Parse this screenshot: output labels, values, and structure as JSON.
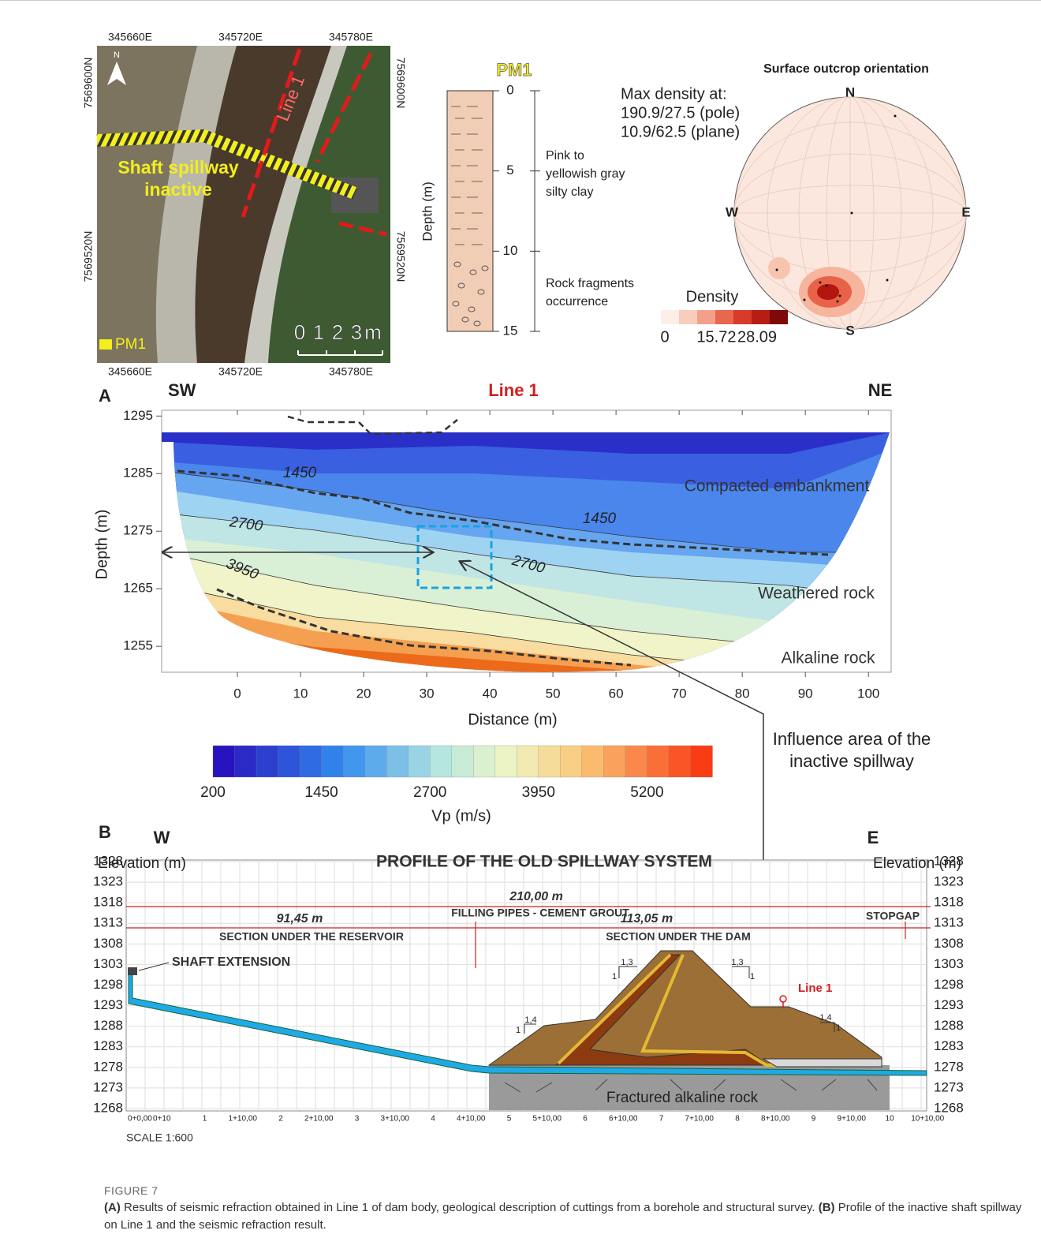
{
  "map": {
    "top_labels": [
      "345660E",
      "345720E",
      "345780E"
    ],
    "bottom_labels": [
      "345660E",
      "345720E",
      "345780E"
    ],
    "left_labels": [
      "7569600N",
      "7569520N"
    ],
    "right_labels": [
      "7569600N",
      "7569520N"
    ],
    "north": "N",
    "line_label": "Line 1",
    "spillway_label": [
      "Shaft spillway",
      "inactive"
    ],
    "scale_ticks": [
      0,
      1,
      2,
      3
    ],
    "scale_unit": "m",
    "borehole_label": "PM1"
  },
  "borehole": {
    "title": "PM1",
    "axis_label": "Depth (m)",
    "ticks": [
      0,
      5,
      10,
      15
    ],
    "descriptions": [
      [
        "Pink to",
        "yellowish gray",
        "silty clay"
      ],
      [
        "Rock fragments",
        "occurrence"
      ]
    ]
  },
  "stereonet": {
    "title": "Surface outcrop orientation",
    "max_density": [
      "Max density at:",
      "190.9/27.5 (pole)",
      "10.9/62.5 (plane)"
    ],
    "directions": {
      "north": "N",
      "south": "S",
      "west": "W",
      "east": "E"
    },
    "legend_title": "Density",
    "legend_ticks": [
      0,
      15.72,
      28.09
    ]
  },
  "section": {
    "panel": "A",
    "left_end": "SW",
    "right_end": "NE",
    "line_name": "Line 1",
    "y_label": "Depth (m)",
    "ylim": [
      1250.5,
      1296
    ],
    "yticks": [
      1295,
      1285,
      1275,
      1265,
      1255
    ],
    "x_label": "Distance (m)",
    "xlim": [
      -12,
      103.6
    ],
    "xticks": [
      0,
      10,
      20,
      30,
      40,
      50,
      60,
      70,
      80,
      90,
      100
    ],
    "contour_labels": [
      1450,
      1450,
      2700,
      2700,
      3950
    ],
    "layers": [
      "Compacted embankment",
      "Weathered rock",
      "Alkaline rock"
    ],
    "annotation": [
      "Influence area of the",
      "inactive spillway"
    ]
  },
  "colorbar": {
    "lim": [
      200,
      5950
    ],
    "ticks": [
      200,
      1450,
      2700,
      3950,
      5200
    ],
    "label": "Vp (m/s)"
  },
  "profile": {
    "panel": "B",
    "left_end": "W",
    "right_end": "E",
    "title": "PROFILE OF THE OLD SPILLWAY SYSTEM",
    "y_label": "Elevation (m)",
    "ylim": [
      1268,
      1328
    ],
    "yticks": [
      1328,
      1323,
      1318,
      1313,
      1308,
      1303,
      1298,
      1293,
      1288,
      1283,
      1278,
      1273,
      1268
    ],
    "total_length": "210,00 m",
    "reservoir_length": "91,45 m",
    "dam_length": "113,05 m",
    "filling": "FILLING PIPES - CEMENT GROUT",
    "reservoir_section": "SECTION UNDER THE RESERVOIR",
    "dam_section": "SECTION UNDER THE DAM",
    "stopgap": "STOPGAP",
    "shaft": "SHAFT EXTENSION",
    "line_marker": "Line 1",
    "rock": "Fractured alkaline rock",
    "slope_labels": [
      "1,3",
      "1",
      "1,3",
      "1",
      "1,4",
      "1",
      "1,4",
      "1"
    ],
    "stations": [
      "0+0,00",
      "0+10",
      "1",
      "1+10,00",
      "2",
      "2+10,00",
      "3",
      "3+10,00",
      "4",
      "4+10,00",
      "5",
      "5+10,00",
      "6",
      "6+10,00",
      "7",
      "7+10,00",
      "8",
      "8+10,00",
      "9",
      "9+10,00",
      "10",
      "10+10,00"
    ],
    "scale": "SCALE 1:600"
  },
  "caption": {
    "label": "FIGURE 7",
    "a_tag": "(A)",
    "a_text": " Results of seismic refraction obtained in Line 1 of dam body, geological description of cuttings from a borehole and structural survey. ",
    "b_tag": "(B)",
    "b_text": " Profile of the inactive shaft spillway on Line 1 and the seismic refraction result."
  }
}
